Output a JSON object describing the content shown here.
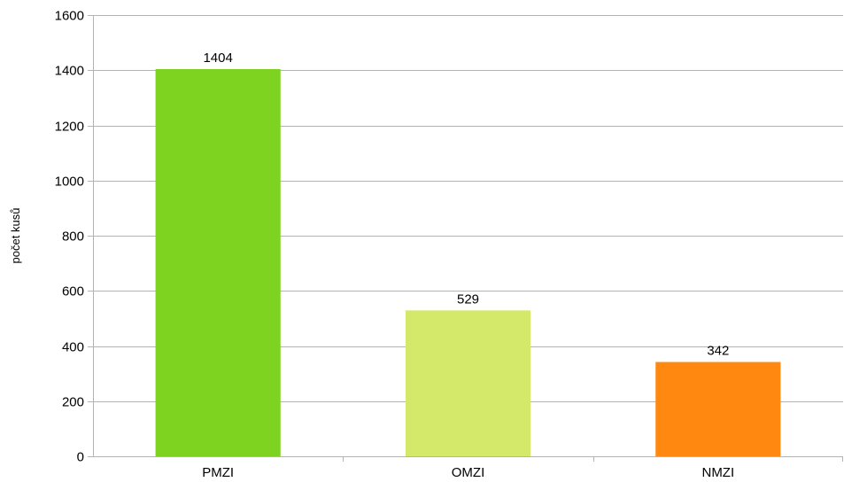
{
  "chart_data": {
    "type": "bar",
    "categories": [
      "PMZI",
      "OMZI",
      "NMZI"
    ],
    "values": [
      1404,
      529,
      342
    ],
    "value_labels": [
      "1404",
      "529",
      "342"
    ],
    "colors": [
      "#7ed321",
      "#d4e96a",
      "#ff8811"
    ],
    "ylabel": "počet kusů",
    "ylim": [
      0,
      1600
    ],
    "yticks": [
      0,
      200,
      400,
      600,
      800,
      1000,
      1200,
      1400,
      1600
    ],
    "ytick_labels": [
      "0",
      "200",
      "400",
      "600",
      "800",
      "1000",
      "1200",
      "1400",
      "1600"
    ],
    "grid": true,
    "legend": "none"
  }
}
